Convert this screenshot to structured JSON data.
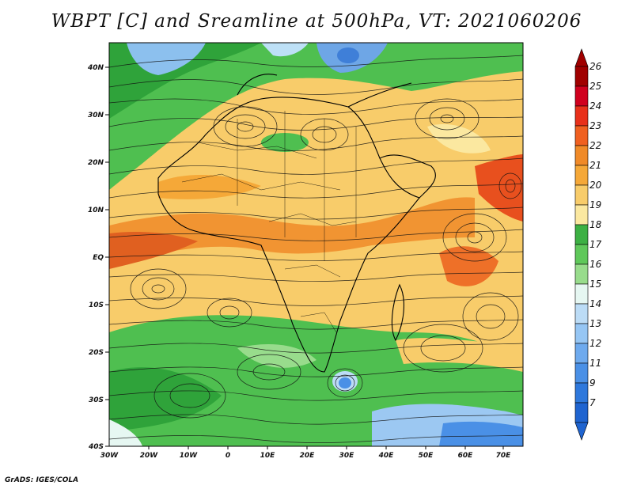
{
  "title": "WBPT [C] and Sreamline at 500hPa, VT: 2021060206",
  "credit": "GrADS: IGES/COLA",
  "lat_ticks": [
    "40N",
    "30N",
    "20N",
    "10N",
    "EQ",
    "10S",
    "20S",
    "30S",
    "40S"
  ],
  "lon_ticks": [
    "30W",
    "20W",
    "10W",
    "0",
    "10E",
    "20E",
    "30E",
    "40E",
    "50E",
    "60E",
    "70E"
  ],
  "colorbar": {
    "labels": [
      "26",
      "25",
      "24",
      "23",
      "22",
      "21",
      "20",
      "19",
      "18",
      "17",
      "16",
      "15",
      "14",
      "13",
      "12",
      "11",
      "9",
      "7"
    ],
    "colors": [
      "#a00000",
      "#d0001e",
      "#e8301a",
      "#f06020",
      "#f08a28",
      "#f5a838",
      "#f8cc6a",
      "#fbe8a0",
      "#3cb043",
      "#5fc85a",
      "#98dc8c",
      "#e6f7f2",
      "#bcdcf6",
      "#96c6f4",
      "#6eaaee",
      "#4a90e6",
      "#2e78dc",
      "#1f64d0"
    ]
  },
  "map": {
    "lon_range": [
      -30,
      75
    ],
    "lat_range": [
      -40,
      45
    ],
    "colors": {
      "warm": "#f8cc6a",
      "hot": "#f08a28",
      "cool": "#5fc85a",
      "cold": "#96c6f4"
    }
  }
}
